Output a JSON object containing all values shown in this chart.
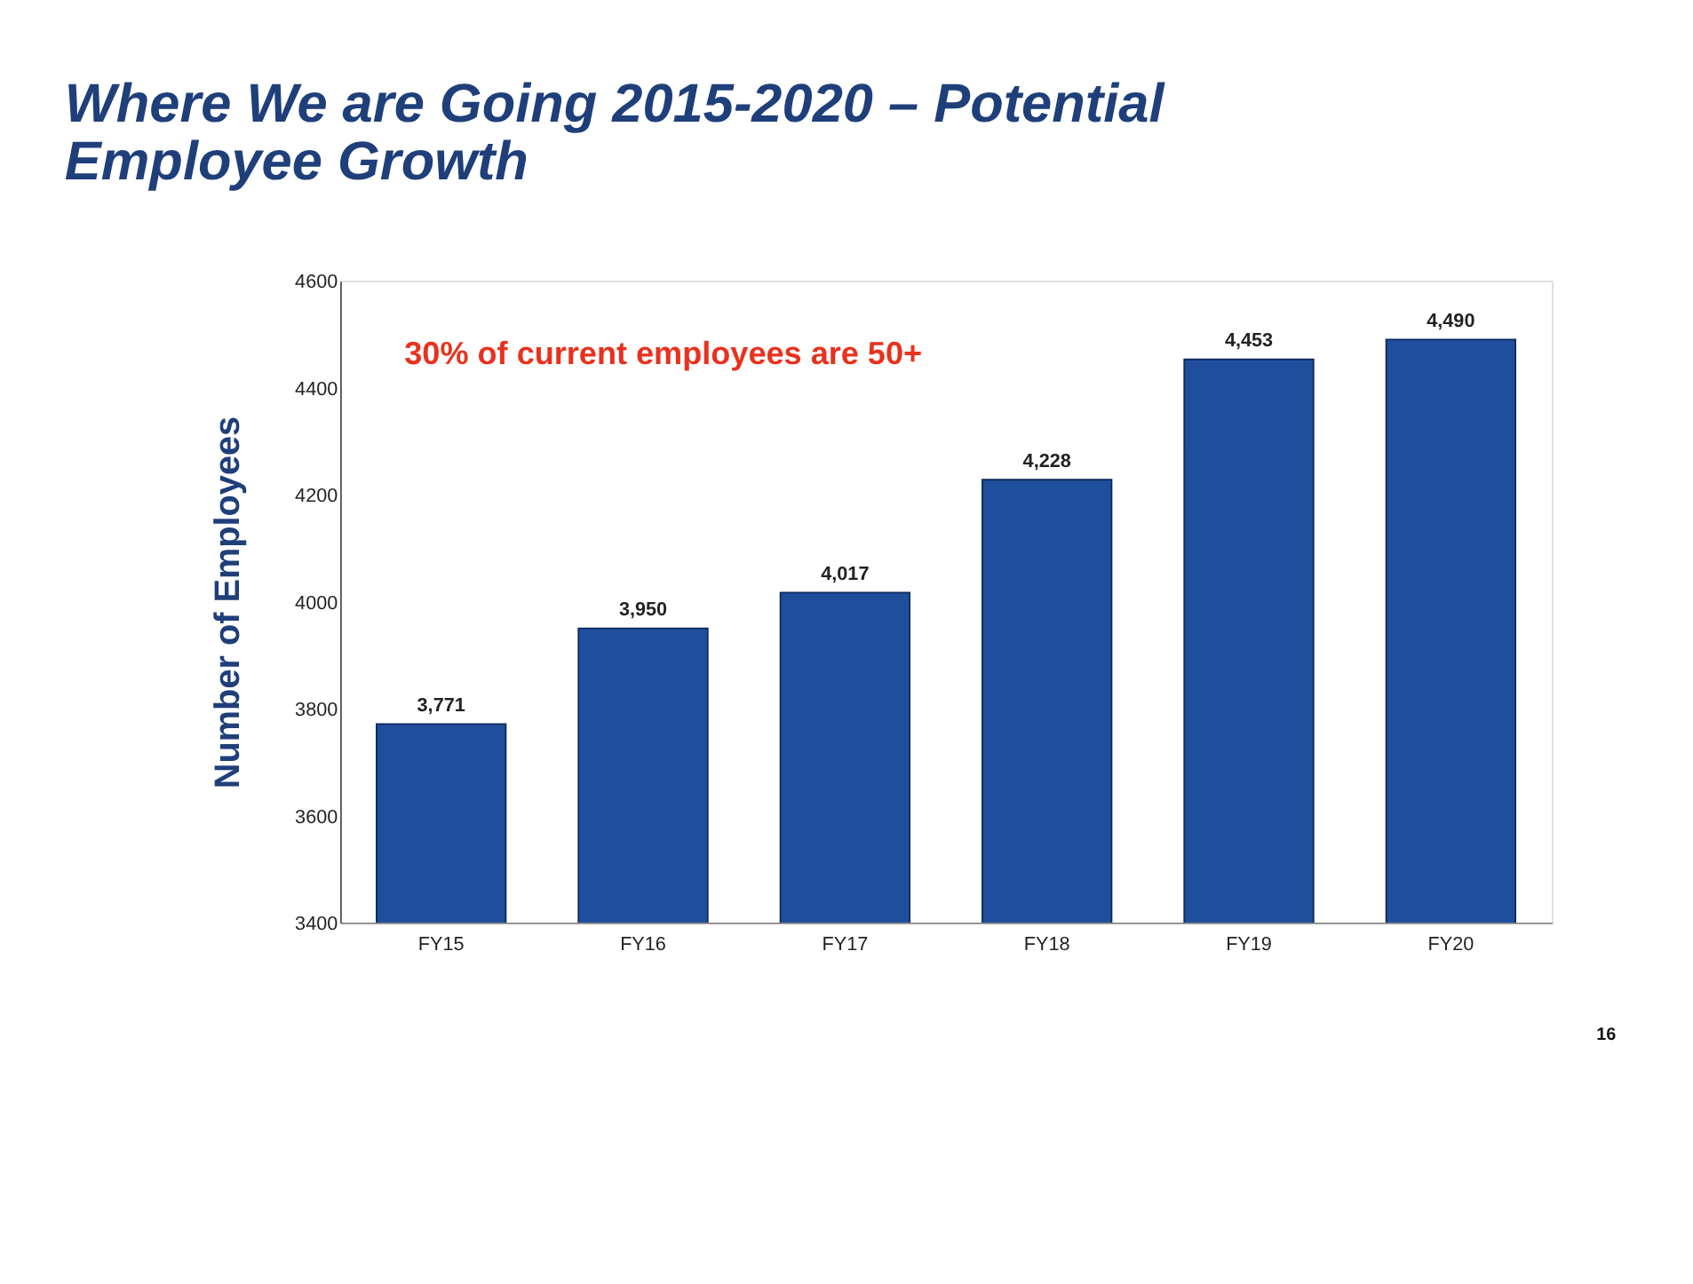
{
  "chart_data": {
    "type": "bar",
    "title": "Where We are Going 2015-2020 – Potential\nEmployee Growth",
    "ylabel": "Number of Employees",
    "categories": [
      "FY15",
      "FY16",
      "FY17",
      "FY18",
      "FY19",
      "FY20"
    ],
    "values": [
      3771,
      3950,
      4017,
      4228,
      4453,
      4490
    ],
    "value_labels": [
      "3,771",
      "3,950",
      "4,017",
      "4,228",
      "4,453",
      "4,490"
    ],
    "color": "#1f4e9c",
    "ylim": [
      3400,
      4600
    ],
    "yticks": [
      3400,
      3600,
      3800,
      4000,
      4200,
      4400,
      4600
    ],
    "grid": false,
    "annotations": [
      "30% of current employees are 50+",
      "16"
    ]
  }
}
